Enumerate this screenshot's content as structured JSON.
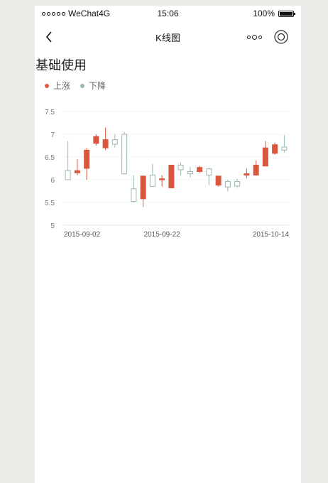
{
  "status_bar": {
    "carrier": "WeChat4G",
    "time": "15:06",
    "battery": "100%"
  },
  "nav": {
    "title": "K线图",
    "back_icon": "chevron-left-icon",
    "more_icon": "more-dots-icon",
    "close_icon": "target-close-icon"
  },
  "page": {
    "title": "基础使用"
  },
  "legend": [
    {
      "label": "上涨",
      "color": "#d9573e"
    },
    {
      "label": "下降",
      "color": "#9ab7aa"
    }
  ],
  "chart_data": {
    "type": "candlestick",
    "y_ticks": [
      "7.5",
      "7",
      "6.5",
      "6",
      "5.5",
      "5"
    ],
    "ylim": [
      5,
      7.5
    ],
    "x_tick_labels": [
      "2015-09-02",
      "2015-09-22",
      "2015-10-14"
    ],
    "x_tick_indices": [
      0,
      10,
      23
    ],
    "up_color": "#d9573e",
    "down_color": "#9ab7aa",
    "candles": [
      {
        "o": 6.0,
        "c": 6.2,
        "h": 6.85,
        "l": 6.0,
        "dir": "down"
      },
      {
        "o": 6.15,
        "c": 6.2,
        "h": 6.45,
        "l": 6.1,
        "dir": "up"
      },
      {
        "o": 6.25,
        "c": 6.65,
        "h": 6.7,
        "l": 6.0,
        "dir": "up"
      },
      {
        "o": 6.8,
        "c": 6.95,
        "h": 7.0,
        "l": 6.75,
        "dir": "up"
      },
      {
        "o": 6.7,
        "c": 6.88,
        "h": 7.15,
        "l": 6.65,
        "dir": "up"
      },
      {
        "o": 6.78,
        "c": 6.88,
        "h": 7.0,
        "l": 6.7,
        "dir": "down"
      },
      {
        "o": 6.13,
        "c": 7.0,
        "h": 7.05,
        "l": 6.13,
        "dir": "down"
      },
      {
        "o": 5.52,
        "c": 5.8,
        "h": 6.1,
        "l": 5.5,
        "dir": "down"
      },
      {
        "o": 5.58,
        "c": 6.08,
        "h": 6.08,
        "l": 5.4,
        "dir": "up"
      },
      {
        "o": 5.85,
        "c": 6.1,
        "h": 6.35,
        "l": 5.85,
        "dir": "down"
      },
      {
        "o": 6.0,
        "c": 6.02,
        "h": 6.1,
        "l": 5.85,
        "dir": "up"
      },
      {
        "o": 5.82,
        "c": 6.32,
        "h": 6.32,
        "l": 5.82,
        "dir": "up"
      },
      {
        "o": 6.22,
        "c": 6.32,
        "h": 6.38,
        "l": 6.1,
        "dir": "down"
      },
      {
        "o": 6.13,
        "c": 6.18,
        "h": 6.28,
        "l": 6.05,
        "dir": "down"
      },
      {
        "o": 6.18,
        "c": 6.27,
        "h": 6.3,
        "l": 6.15,
        "dir": "up"
      },
      {
        "o": 6.1,
        "c": 6.24,
        "h": 6.26,
        "l": 5.88,
        "dir": "down"
      },
      {
        "o": 5.88,
        "c": 6.08,
        "h": 6.08,
        "l": 5.85,
        "dir": "up"
      },
      {
        "o": 5.84,
        "c": 5.96,
        "h": 6.0,
        "l": 5.74,
        "dir": "down"
      },
      {
        "o": 5.86,
        "c": 5.96,
        "h": 6.02,
        "l": 5.82,
        "dir": "down"
      },
      {
        "o": 6.1,
        "c": 6.13,
        "h": 6.25,
        "l": 6.03,
        "dir": "up"
      },
      {
        "o": 6.1,
        "c": 6.32,
        "h": 6.42,
        "l": 6.1,
        "dir": "up"
      },
      {
        "o": 6.3,
        "c": 6.7,
        "h": 6.85,
        "l": 6.3,
        "dir": "up"
      },
      {
        "o": 6.58,
        "c": 6.77,
        "h": 6.82,
        "l": 6.55,
        "dir": "up"
      },
      {
        "o": 6.65,
        "c": 6.72,
        "h": 6.98,
        "l": 6.6,
        "dir": "down"
      }
    ]
  }
}
